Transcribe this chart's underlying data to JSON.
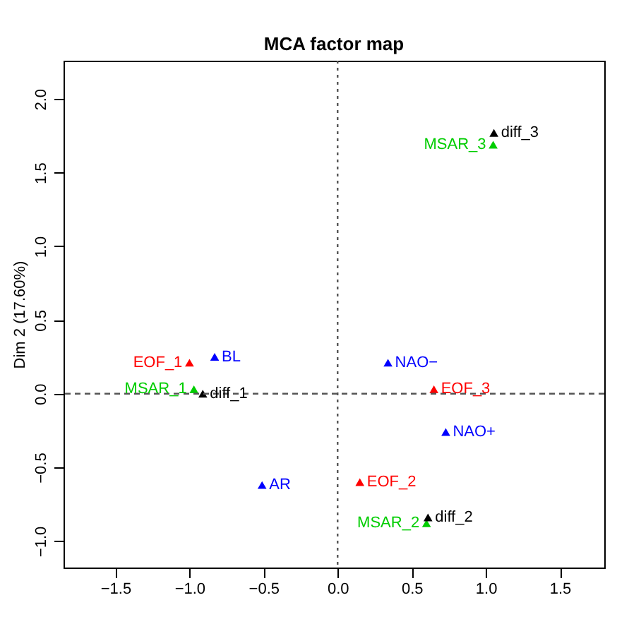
{
  "chart_data": {
    "type": "scatter",
    "title": "MCA factor map",
    "ylabel": "Dim 2 (17.60%)",
    "xlim": [
      -1.85,
      1.8
    ],
    "ylim": [
      -1.18,
      2.26
    ],
    "xticks": [
      -1.5,
      {
        "value": -1,
        "label": "−1.0"
      },
      -0.5,
      {
        "value": 0,
        "label": "0.0"
      },
      0.5,
      {
        "value": 1,
        "label": "1.0"
      },
      1.5
    ],
    "yticks": [
      {
        "value": -1,
        "label": "−1.0"
      },
      -0.5,
      {
        "value": 0,
        "label": "0.0"
      },
      0.5,
      {
        "value": 1,
        "label": "1.0"
      },
      1.5,
      {
        "value": 2,
        "label": "2.0"
      }
    ],
    "grid": false,
    "legend": false,
    "marker": "triangle",
    "series": [
      {
        "color": "#0000ff",
        "x": [
          -0.83,
          0.34,
          0.73,
          -0.51
        ],
        "values": [
          0.25,
          0.21,
          -0.26,
          -0.62
        ]
      },
      {
        "color": "#ff0000",
        "x": [
          -1.0,
          0.15,
          0.65
        ],
        "values": [
          0.21,
          -0.6,
          0.03
        ]
      },
      {
        "color": "#00cd00",
        "x": [
          -0.97,
          0.6,
          1.05
        ],
        "values": [
          0.03,
          -0.88,
          1.69
        ]
      },
      {
        "color": "#000000",
        "x": [
          -0.91,
          0.61,
          1.055
        ],
        "values": [
          0.0,
          -0.84,
          1.77
        ]
      }
    ],
    "annotations": [
      {
        "text": "BL",
        "x": -0.83,
        "y": 0.25
      },
      {
        "text": "NAO−",
        "x": 0.34,
        "y": 0.21
      },
      {
        "text": "NAO+",
        "x": 0.73,
        "y": -0.26
      },
      {
        "text": "AR",
        "x": -0.51,
        "y": -0.62
      },
      {
        "text": "EOF_1",
        "x": -1.0,
        "y": 0.21
      },
      {
        "text": "EOF_2",
        "x": 0.15,
        "y": -0.6
      },
      {
        "text": "EOF_3",
        "x": 0.65,
        "y": 0.03
      },
      {
        "text": "MSAR_1",
        "x": -0.97,
        "y": 0.03
      },
      {
        "text": "MSAR_2",
        "x": 0.6,
        "y": -0.88
      },
      {
        "text": "MSAR_3",
        "x": 1.05,
        "y": 1.69
      },
      {
        "text": "diff_1",
        "x": -0.91,
        "y": 0.0
      },
      {
        "text": "diff_2",
        "x": 0.61,
        "y": -0.84
      },
      {
        "text": "diff_3",
        "x": 1.055,
        "y": 1.77
      }
    ],
    "ref_lines": [
      {
        "axis": "x",
        "value": 0,
        "line_style": "dotted"
      },
      {
        "axis": "y",
        "value": 0,
        "line_style": "dashed"
      }
    ]
  }
}
